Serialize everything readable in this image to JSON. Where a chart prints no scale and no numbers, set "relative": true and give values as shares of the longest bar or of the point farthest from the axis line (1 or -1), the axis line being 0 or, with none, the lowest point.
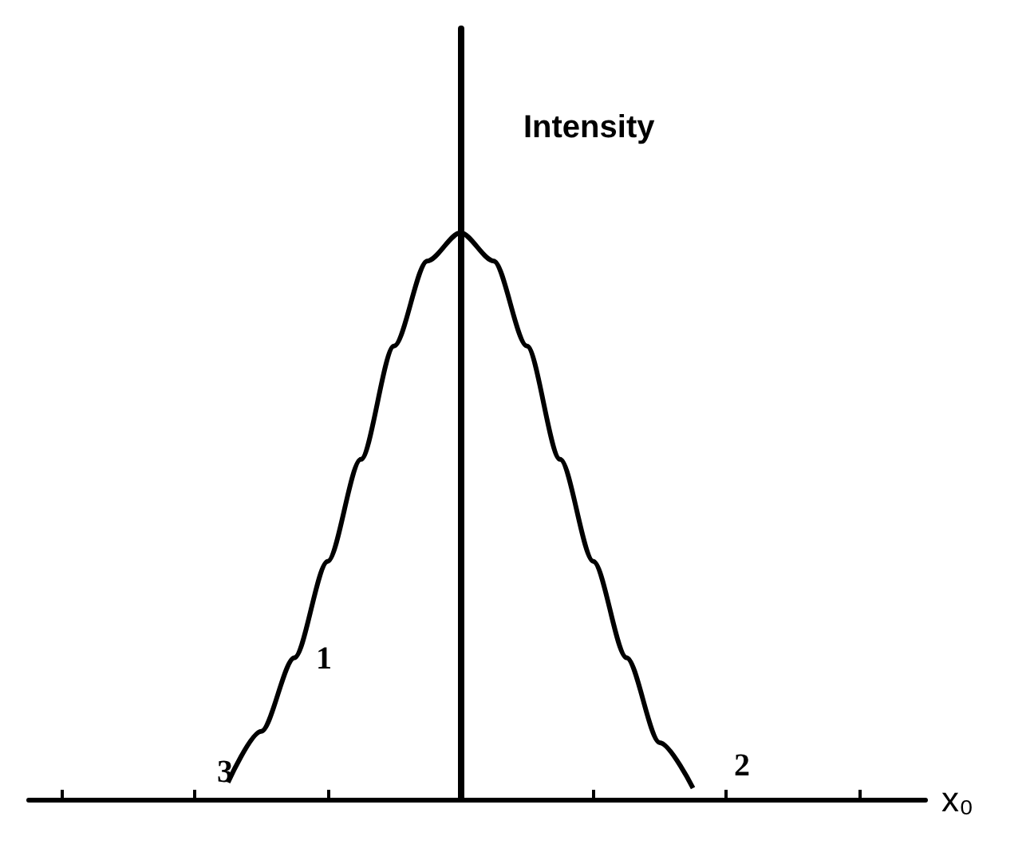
{
  "chart_data": {
    "type": "line",
    "relative": true,
    "ylabel": "Intensity",
    "xlabel": "x₀",
    "color": "#000000",
    "marker": "none",
    "line_style": "solid",
    "categories": [
      null,
      null,
      null,
      null,
      null,
      null,
      null,
      null,
      null,
      null,
      null,
      null,
      null,
      null,
      null,
      null,
      null,
      null,
      null,
      null,
      null,
      null,
      null,
      null,
      null,
      null,
      null,
      null
    ],
    "values": [
      null,
      null,
      null,
      null,
      null,
      null,
      0.03,
      0.12,
      0.25,
      0.42,
      0.6,
      0.8,
      0.95,
      1,
      0.95,
      0.8,
      0.6,
      0.42,
      0.25,
      0.1,
      0.02,
      null,
      null,
      null,
      null,
      null,
      null,
      null
    ],
    "annotations": [
      "1",
      "2",
      "3"
    ]
  }
}
